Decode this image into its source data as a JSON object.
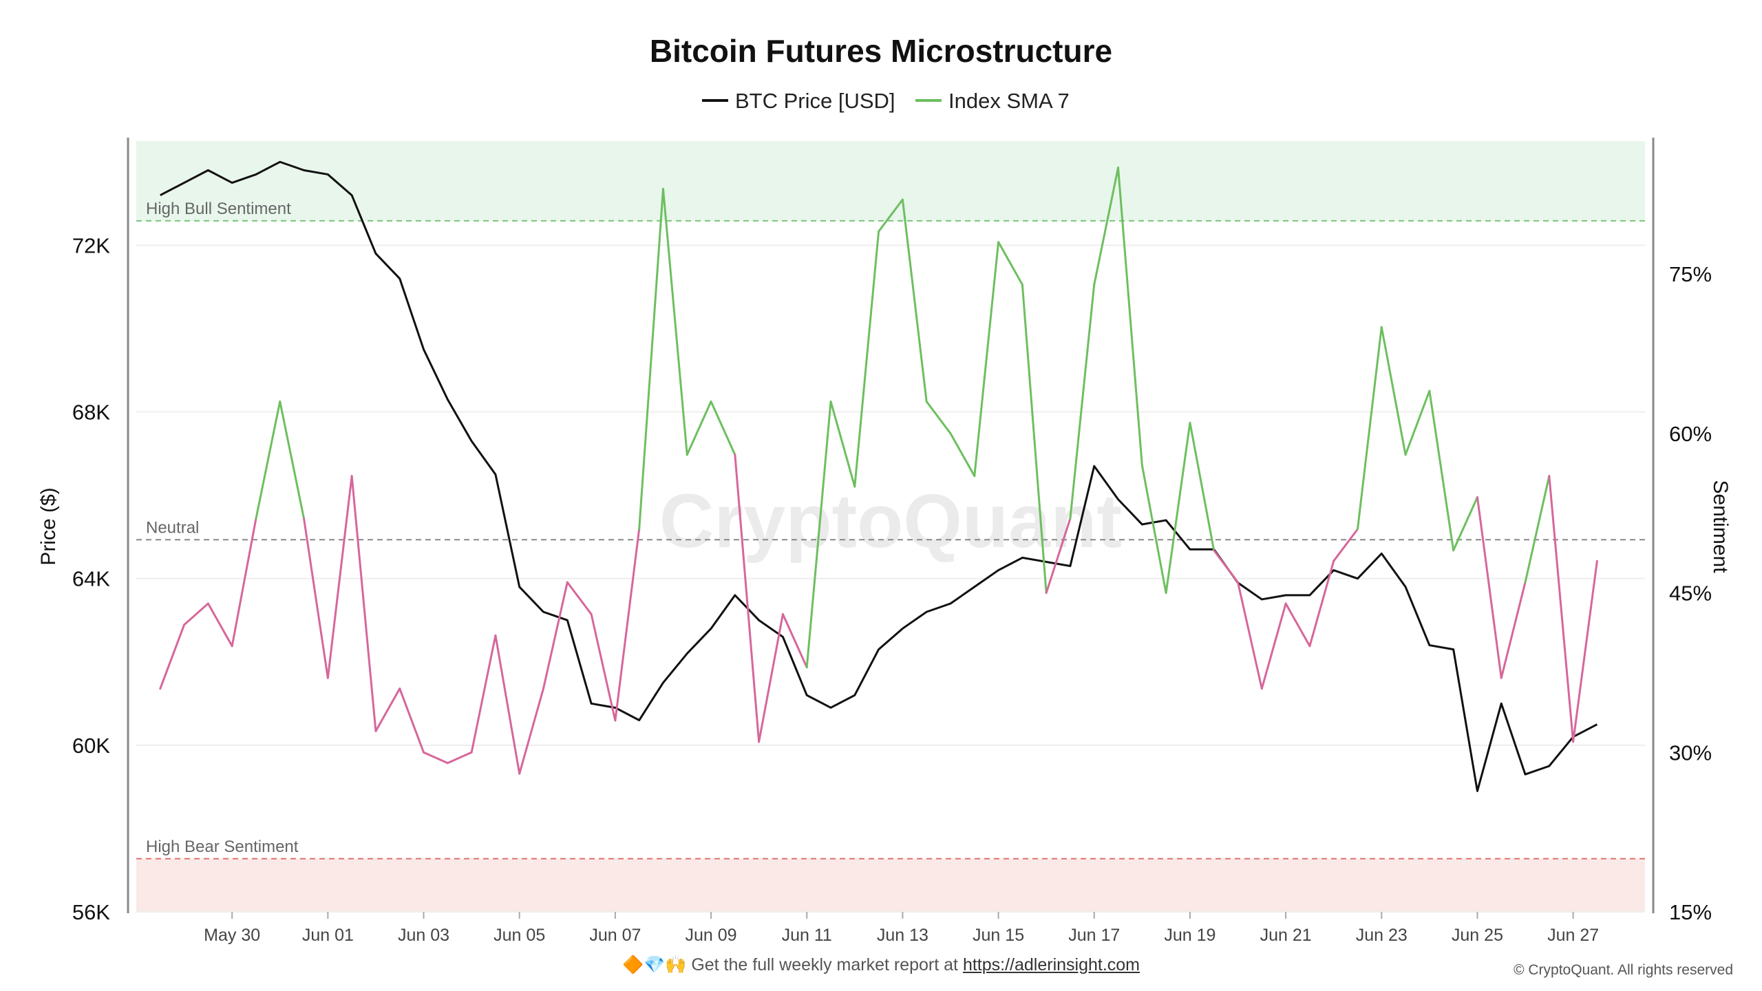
{
  "chart_data": {
    "type": "line",
    "title": "Bitcoin Futures Microstructure",
    "legend": {
      "placement": "top-center",
      "entries": [
        "BTC Price [USD]",
        "Index SMA 7"
      ]
    },
    "left_axis": {
      "label": "Price ($)",
      "range": [
        56000,
        74500
      ],
      "ticks": [
        56000,
        60000,
        64000,
        68000,
        72000
      ],
      "tick_labels": [
        "56K",
        "60K",
        "64K",
        "68K",
        "72K"
      ]
    },
    "right_axis": {
      "label": "Sentiment",
      "range": [
        15,
        87.5
      ],
      "ticks": [
        15,
        30,
        45,
        60,
        75
      ],
      "tick_labels": [
        "15%",
        "30%",
        "45%",
        "60%",
        "75%"
      ]
    },
    "x_axis": {
      "tick_labels": [
        "May 30",
        "Jun 01",
        "Jun 03",
        "Jun 05",
        "Jun 07",
        "Jun 09",
        "Jun 11",
        "Jun 13",
        "Jun 15",
        "Jun 17",
        "Jun 19",
        "Jun 21",
        "Jun 23",
        "Jun 25",
        "Jun 27"
      ]
    },
    "grid": true,
    "reference_lines": [
      {
        "label": "High Bull Sentiment",
        "value": 80,
        "color": "#7cc47c"
      },
      {
        "label": "Neutral",
        "value": 50,
        "color": "#888888"
      },
      {
        "label": "High Bear Sentiment",
        "value": 20,
        "color": "#e07070"
      }
    ],
    "zones": [
      {
        "from": 80,
        "to": 87.5,
        "color": "#e8f6ec"
      },
      {
        "from": 15,
        "to": 20,
        "color": "#fbe9e7"
      }
    ],
    "colors": {
      "price": "#111111",
      "sentiment_high": "#6dbf5f",
      "sentiment_low": "#d6679a"
    },
    "series": [
      {
        "name": "BTC Price [USD]",
        "axis": "left",
        "x": [
          "2024-05-28T12",
          "2024-05-29T00",
          "2024-05-29T12",
          "2024-05-30T00",
          "2024-05-30T12",
          "2024-05-31T00",
          "2024-05-31T12",
          "2024-06-01T00",
          "2024-06-01T12",
          "2024-06-02T00",
          "2024-06-02T12",
          "2024-06-03T00",
          "2024-06-03T12",
          "2024-06-04T00",
          "2024-06-04T12",
          "2024-06-05T00",
          "2024-06-05T12",
          "2024-06-06T00",
          "2024-06-06T12",
          "2024-06-07T00",
          "2024-06-07T12",
          "2024-06-08T00",
          "2024-06-08T12",
          "2024-06-09T00",
          "2024-06-09T12",
          "2024-06-10T00",
          "2024-06-10T12",
          "2024-06-11T00",
          "2024-06-11T12",
          "2024-06-12T00",
          "2024-06-12T12",
          "2024-06-13T00",
          "2024-06-13T12",
          "2024-06-14T00",
          "2024-06-14T12",
          "2024-06-15T00",
          "2024-06-15T12",
          "2024-06-16T00",
          "2024-06-16T12",
          "2024-06-17T00",
          "2024-06-17T12",
          "2024-06-18T00",
          "2024-06-18T12",
          "2024-06-19T00",
          "2024-06-19T12",
          "2024-06-20T00",
          "2024-06-20T12",
          "2024-06-21T00",
          "2024-06-21T12",
          "2024-06-22T00",
          "2024-06-22T12",
          "2024-06-23T00",
          "2024-06-23T12",
          "2024-06-24T00",
          "2024-06-24T12",
          "2024-06-25T00",
          "2024-06-25T12",
          "2024-06-26T00",
          "2024-06-26T12",
          "2024-06-27T00",
          "2024-06-27T12"
        ],
        "values": [
          73200,
          73500,
          73800,
          73500,
          73700,
          74000,
          73800,
          73700,
          73200,
          71800,
          71200,
          69500,
          68300,
          67300,
          66500,
          63800,
          63200,
          63000,
          61000,
          60900,
          60600,
          61500,
          62200,
          62800,
          63600,
          63000,
          62600,
          61200,
          60900,
          61200,
          62300,
          62800,
          63200,
          63400,
          63800,
          64200,
          64500,
          64400,
          64300,
          66700,
          65900,
          65300,
          65400,
          64700,
          64700,
          63900,
          63500,
          63600,
          63600,
          64200,
          64000,
          64600,
          63800,
          62400,
          62300,
          58900,
          61000,
          59300,
          59500,
          60200,
          60500
        ]
      },
      {
        "name": "Index SMA 7",
        "axis": "right",
        "x": [
          "2024-05-28T12",
          "2024-05-29T00",
          "2024-05-29T12",
          "2024-05-30T00",
          "2024-05-30T12",
          "2024-05-31T00",
          "2024-05-31T12",
          "2024-06-01T00",
          "2024-06-01T12",
          "2024-06-02T00",
          "2024-06-02T12",
          "2024-06-03T00",
          "2024-06-03T12",
          "2024-06-04T00",
          "2024-06-04T12",
          "2024-06-05T00",
          "2024-06-05T12",
          "2024-06-06T00",
          "2024-06-06T12",
          "2024-06-07T00",
          "2024-06-07T12",
          "2024-06-08T00",
          "2024-06-08T12",
          "2024-06-09T00",
          "2024-06-09T12",
          "2024-06-10T00",
          "2024-06-10T12",
          "2024-06-11T00",
          "2024-06-11T12",
          "2024-06-12T00",
          "2024-06-12T12",
          "2024-06-13T00",
          "2024-06-13T12",
          "2024-06-14T00",
          "2024-06-14T12",
          "2024-06-15T00",
          "2024-06-15T12",
          "2024-06-16T00",
          "2024-06-16T12",
          "2024-06-17T00",
          "2024-06-17T12",
          "2024-06-18T00",
          "2024-06-18T12",
          "2024-06-19T00",
          "2024-06-19T12",
          "2024-06-20T00",
          "2024-06-20T12",
          "2024-06-21T00",
          "2024-06-21T12",
          "2024-06-22T00",
          "2024-06-22T12",
          "2024-06-23T00",
          "2024-06-23T12",
          "2024-06-24T00",
          "2024-06-24T12",
          "2024-06-25T00",
          "2024-06-25T12",
          "2024-06-26T00",
          "2024-06-26T12",
          "2024-06-27T00",
          "2024-06-27T12"
        ],
        "values": [
          36,
          42,
          44,
          40,
          52,
          63,
          52,
          37,
          56,
          32,
          36,
          30,
          29,
          30,
          41,
          28,
          36,
          46,
          43,
          33,
          51,
          83,
          58,
          63,
          58,
          31,
          43,
          38,
          63,
          55,
          79,
          82,
          63,
          60,
          56,
          78,
          74,
          45,
          52,
          74,
          85,
          57,
          45,
          61,
          49,
          46,
          36,
          44,
          40,
          48,
          51,
          70,
          58,
          64,
          49,
          54,
          37,
          46,
          56,
          31,
          48
        ]
      }
    ]
  },
  "watermark": "CryptoQuant",
  "footer": {
    "emoji": "🔶💎🙌",
    "text": "Get the full weekly market report at",
    "link_text": "https://adlerinsight.com"
  },
  "copyright": "© CryptoQuant. All rights reserved"
}
